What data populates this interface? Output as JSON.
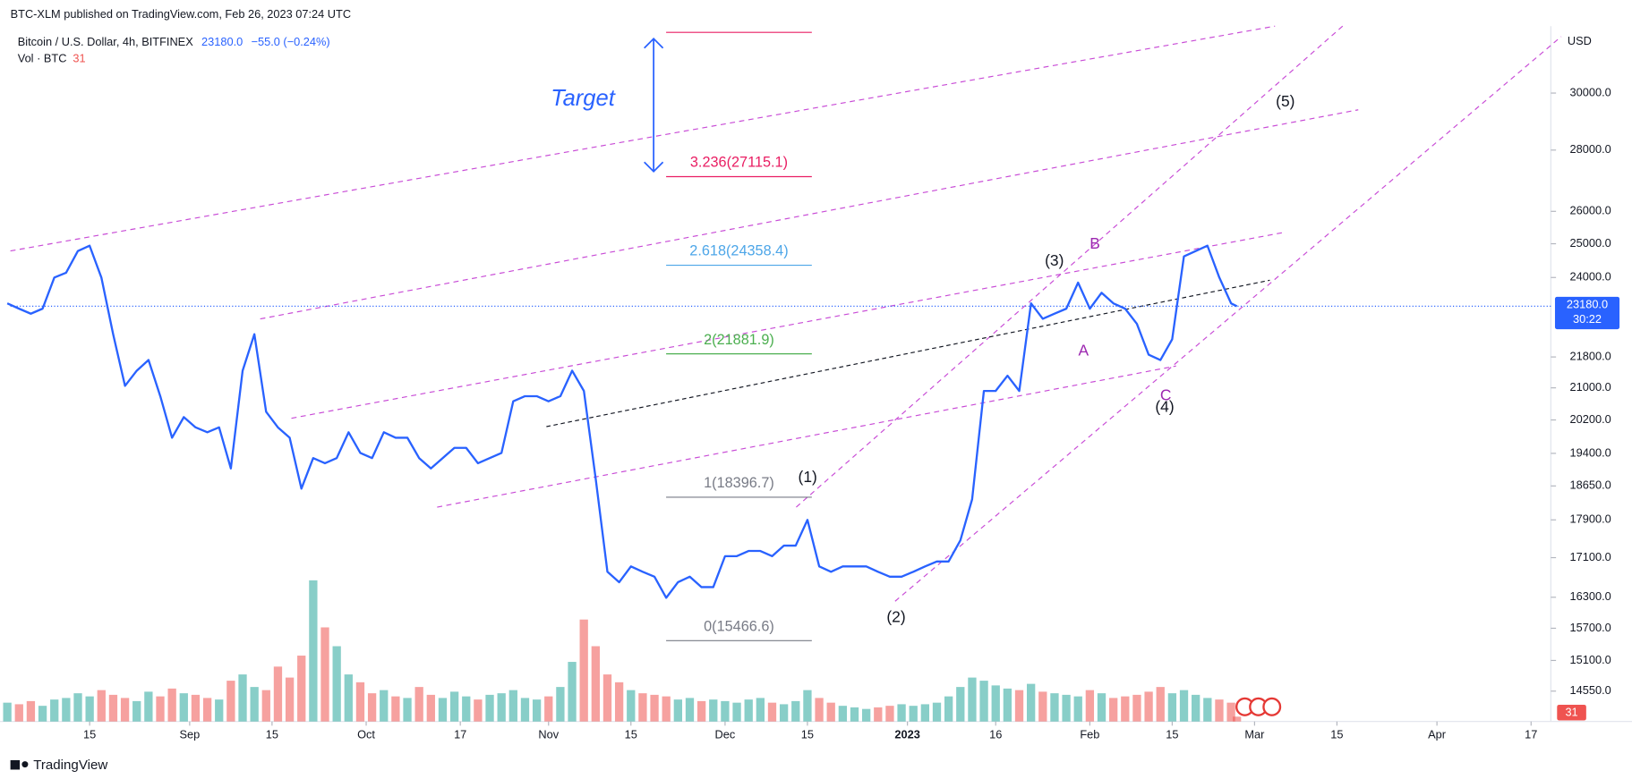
{
  "chart_data": {
    "type": "line",
    "published": "BTC-XLM published on TradingView.com, Feb 26, 2023 07:24 UTC",
    "change": "−55.0 (−0.24%)",
    "currency": "USD",
    "countdown": "30:22",
    "footer": "TradingView",
    "annotation": "Target",
    "log_scale": true,
    "grid": false,
    "last_price": {
      "value": 23180,
      "label": "23180.0"
    },
    "x": [
      "2022-08-01",
      "2022-08-03",
      "2022-08-05",
      "2022-08-07",
      "2022-08-09",
      "2022-08-11",
      "2022-08-13",
      "2022-08-15",
      "2022-08-17",
      "2022-08-19",
      "2022-08-21",
      "2022-08-23",
      "2022-08-25",
      "2022-08-27",
      "2022-08-29",
      "2022-08-31",
      "2022-09-02",
      "2022-09-04",
      "2022-09-06",
      "2022-09-08",
      "2022-09-10",
      "2022-09-12",
      "2022-09-14",
      "2022-09-16",
      "2022-09-18",
      "2022-09-20",
      "2022-09-22",
      "2022-09-24",
      "2022-09-26",
      "2022-09-28",
      "2022-09-30",
      "2022-10-02",
      "2022-10-04",
      "2022-10-06",
      "2022-10-08",
      "2022-10-10",
      "2022-10-12",
      "2022-10-14",
      "2022-10-16",
      "2022-10-18",
      "2022-10-20",
      "2022-10-22",
      "2022-10-24",
      "2022-10-26",
      "2022-10-28",
      "2022-10-30",
      "2022-11-01",
      "2022-11-03",
      "2022-11-05",
      "2022-11-07",
      "2022-11-09",
      "2022-11-11",
      "2022-11-13",
      "2022-11-15",
      "2022-11-17",
      "2022-11-19",
      "2022-11-21",
      "2022-11-23",
      "2022-11-25",
      "2022-11-27",
      "2022-11-29",
      "2022-12-01",
      "2022-12-03",
      "2022-12-05",
      "2022-12-07",
      "2022-12-09",
      "2022-12-11",
      "2022-12-13",
      "2022-12-15",
      "2022-12-17",
      "2022-12-19",
      "2022-12-21",
      "2022-12-23",
      "2022-12-25",
      "2022-12-27",
      "2022-12-29",
      "2022-12-31",
      "2023-01-02",
      "2023-01-04",
      "2023-01-06",
      "2023-01-08",
      "2023-01-10",
      "2023-01-12",
      "2023-01-14",
      "2023-01-16",
      "2023-01-18",
      "2023-01-20",
      "2023-01-22",
      "2023-01-24",
      "2023-01-26",
      "2023-01-28",
      "2023-01-30",
      "2023-02-01",
      "2023-02-03",
      "2023-02-05",
      "2023-02-07",
      "2023-02-09",
      "2023-02-11",
      "2023-02-13",
      "2023-02-15",
      "2023-02-17",
      "2023-02-19",
      "2023-02-21",
      "2023-02-23",
      "2023-02-25",
      "2023-02-26"
    ],
    "series": [
      {
        "name": "Bitcoin / U.S. Dollar, 4h, BITFINEX",
        "color": "#2962ff",
        "values": [
          23260,
          23110,
          22970,
          23110,
          24000,
          24140,
          24780,
          24940,
          24000,
          22410,
          21050,
          21440,
          21720,
          20790,
          19770,
          20270,
          20020,
          19900,
          20020,
          19050,
          21440,
          22410,
          20400,
          20020,
          19770,
          18590,
          19290,
          19170,
          19290,
          19900,
          19410,
          19290,
          19900,
          19770,
          19770,
          19290,
          19050,
          19290,
          19530,
          19530,
          19170,
          19290,
          19410,
          20660,
          20790,
          20790,
          20660,
          20790,
          21440,
          20920,
          18820,
          16810,
          16600,
          16920,
          16810,
          16710,
          16290,
          16600,
          16710,
          16500,
          16500,
          17130,
          17130,
          17240,
          17240,
          17130,
          17350,
          17350,
          17900,
          16920,
          16810,
          16920,
          16920,
          16920,
          16810,
          16710,
          16710,
          16810,
          16920,
          17020,
          17020,
          17460,
          18350,
          20920,
          20920,
          21310,
          20920,
          23260,
          22830,
          22970,
          23110,
          23850,
          23110,
          23560,
          23260,
          23110,
          22690,
          21860,
          21720,
          22270,
          24620,
          24780,
          24940,
          24000,
          23260,
          23180
        ]
      }
    ],
    "volume": {
      "name": "Vol · BTC",
      "up_color": "#26a69a",
      "down_color": "#ef5350",
      "values": [
        120,
        110,
        130,
        100,
        140,
        150,
        180,
        160,
        200,
        170,
        150,
        130,
        190,
        160,
        210,
        180,
        170,
        150,
        140,
        260,
        300,
        220,
        200,
        350,
        280,
        420,
        900,
        600,
        480,
        300,
        250,
        180,
        200,
        160,
        150,
        220,
        170,
        150,
        190,
        160,
        140,
        170,
        180,
        200,
        150,
        140,
        160,
        220,
        380,
        650,
        480,
        300,
        250,
        200,
        180,
        170,
        160,
        140,
        150,
        130,
        140,
        130,
        120,
        140,
        150,
        120,
        110,
        130,
        200,
        150,
        120,
        100,
        90,
        80,
        90,
        100,
        110,
        100,
        110,
        120,
        160,
        220,
        280,
        260,
        230,
        210,
        200,
        240,
        190,
        180,
        170,
        160,
        200,
        180,
        150,
        160,
        170,
        190,
        220,
        180,
        200,
        170,
        150,
        140,
        120,
        31
      ],
      "vlim": [
        0,
        1000
      ]
    },
    "xlim": [
      "2022-08-01",
      "2023-04-20"
    ],
    "xticks": [
      {
        "value": "2022-08-15",
        "label": "15"
      },
      {
        "value": "2022-09-01",
        "label": "Sep"
      },
      {
        "value": "2022-09-15",
        "label": "15"
      },
      {
        "value": "2022-10-01",
        "label": "Oct"
      },
      {
        "value": "2022-10-17",
        "label": "17"
      },
      {
        "value": "2022-11-01",
        "label": "Nov"
      },
      {
        "value": "2022-11-15",
        "label": "15"
      },
      {
        "value": "2022-12-01",
        "label": "Dec"
      },
      {
        "value": "2022-12-15",
        "label": "15"
      },
      {
        "value": "2023-01-01",
        "label": "2023"
      },
      {
        "value": "2023-01-16",
        "label": "16"
      },
      {
        "value": "2023-02-01",
        "label": "Feb"
      },
      {
        "value": "2023-02-15",
        "label": "15"
      },
      {
        "value": "2023-03-01",
        "label": "Mar"
      },
      {
        "value": "2023-03-15",
        "label": "15"
      },
      {
        "value": "2023-04-01",
        "label": "Apr"
      },
      {
        "value": "2023-04-17",
        "label": "17"
      }
    ],
    "ylim": [
      14025,
      32530
    ],
    "yticks": [
      {
        "value": 30000,
        "label": "30000.0"
      },
      {
        "value": 28000,
        "label": "28000.0"
      },
      {
        "value": 26000,
        "label": "26000.0"
      },
      {
        "value": 25000,
        "label": "25000.0"
      },
      {
        "value": 24000,
        "label": "24000.0"
      },
      {
        "value": 21800,
        "label": "21800.0"
      },
      {
        "value": 21000,
        "label": "21000.0"
      },
      {
        "value": 20200,
        "label": "20200.0"
      },
      {
        "value": 19400,
        "label": "19400.0"
      },
      {
        "value": 18650,
        "label": "18650.0"
      },
      {
        "value": 17900,
        "label": "17900.0"
      },
      {
        "value": 17100,
        "label": "17100.0"
      },
      {
        "value": 16300,
        "label": "16300.0"
      },
      {
        "value": 15700,
        "label": "15700.0"
      },
      {
        "value": 15100,
        "label": "15100.0"
      },
      {
        "value": 14550,
        "label": "14550.0"
      }
    ],
    "fib_levels": [
      {
        "value": 32285,
        "color": "#e91e63"
      },
      {
        "label": "3.236(27115.1)",
        "value": 27115.1,
        "color": "#e91e63"
      },
      {
        "label": "2.618(24358.4)",
        "value": 24358.4,
        "color": "#4da6e8"
      },
      {
        "label": "2(21881.9)",
        "value": 21881.9,
        "color": "#4caf50"
      },
      {
        "label": "1(18396.7)",
        "value": 18396.7,
        "color": "#787b86"
      },
      {
        "label": "0(15466.6)",
        "value": 15466.6,
        "color": "#787b86"
      }
    ],
    "waves": [
      {
        "label": "(1)"
      },
      {
        "label": "(2)"
      },
      {
        "label": "(3)"
      },
      {
        "label": "(4)"
      },
      {
        "label": "(5)"
      },
      {
        "label": "A"
      },
      {
        "label": "B"
      },
      {
        "label": "C"
      }
    ]
  }
}
